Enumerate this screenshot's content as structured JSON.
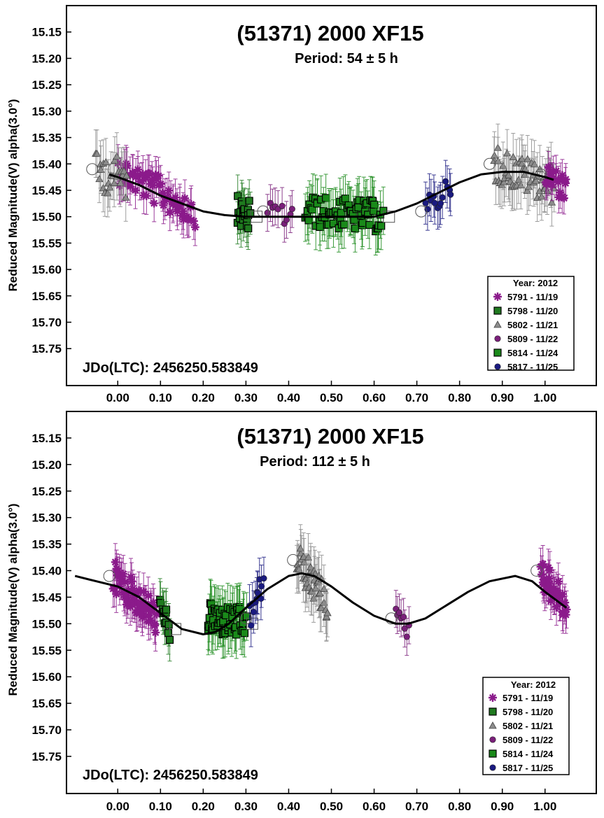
{
  "legend_colors": {
    "5791": "#8b1a8b",
    "5798": "#1f7a1f",
    "5802": "#8c8c8c",
    "5809": "#7a1f7a",
    "5814": "#1a8a1a",
    "5817": "#1a1a80"
  },
  "chart_data": [
    {
      "type": "scatter",
      "title": "(51371) 2000 XF15",
      "subtitle": "Period: 54 ± 5 h",
      "ylabel": "Reduced Magnitude(V) alpha(3.0°)",
      "xlabel": "",
      "jd_label": "JDo(LTC): 2456250.583849",
      "x_range": [
        -0.12,
        1.12
      ],
      "y_range": [
        15.1,
        15.82
      ],
      "y_inverted": true,
      "y_ticks": [
        "15.15",
        "15.20",
        "15.25",
        "15.30",
        "15.35",
        "15.40",
        "15.45",
        "15.50",
        "15.55",
        "15.60",
        "15.65",
        "15.70",
        "15.75"
      ],
      "x_ticks": [
        "0.00",
        "0.10",
        "0.20",
        "0.30",
        "0.40",
        "0.50",
        "0.60",
        "0.70",
        "0.80",
        "0.90",
        "1.00"
      ],
      "legend": {
        "title": "Year: 2012",
        "entries": [
          {
            "label": "5791 - 11/19",
            "symbol": "asterisk",
            "color": "#8b1a8b"
          },
          {
            "label": "5798 - 11/20",
            "symbol": "square",
            "color": "#1f7a1f"
          },
          {
            "label": "5802 - 11/21",
            "symbol": "triangle",
            "color": "#8c8c8c"
          },
          {
            "label": "5809 - 11/22",
            "symbol": "circle",
            "color": "#7a1f7a"
          },
          {
            "label": "5814 - 11/24",
            "symbol": "square",
            "color": "#1a8a1a"
          },
          {
            "label": "5817 - 11/25",
            "symbol": "circle",
            "color": "#1a1a80"
          }
        ]
      },
      "fit_curve": {
        "x": [
          -0.02,
          0.0,
          0.05,
          0.1,
          0.15,
          0.2,
          0.25,
          0.3,
          0.35,
          0.4,
          0.45,
          0.5,
          0.55,
          0.6,
          0.65,
          0.7,
          0.75,
          0.8,
          0.85,
          0.9,
          0.95,
          1.0,
          1.02
        ],
        "y": [
          15.42,
          15.425,
          15.44,
          15.46,
          15.475,
          15.49,
          15.497,
          15.5,
          15.5,
          15.5,
          15.5,
          15.5,
          15.5,
          15.5,
          15.49,
          15.475,
          15.455,
          15.435,
          15.42,
          15.415,
          15.415,
          15.425,
          15.43
        ]
      },
      "series": [
        {
          "name": "5791 - 11/19",
          "symbol": "asterisk",
          "color": "#8b1a8b",
          "x_range": [
            0.0,
            0.18
          ],
          "y_start": 15.41,
          "y_end": 15.49,
          "scatter": 0.03,
          "count": 60,
          "err": 0.035
        },
        {
          "name": "5798 - 11/20",
          "symbol": "square",
          "color": "#1f7a1f",
          "x_range": [
            0.28,
            0.31
          ],
          "y_start": 15.49,
          "y_end": 15.5,
          "scatter": 0.03,
          "count": 20,
          "err": 0.04
        },
        {
          "name": "5802 - 11/21",
          "symbol": "triangle",
          "color": "#8c8c8c",
          "x_range": [
            -0.05,
            0.02
          ],
          "y_start": 15.41,
          "y_end": 15.43,
          "scatter": 0.04,
          "count": 25,
          "err": 0.045
        },
        {
          "name": "5802 - 11/21",
          "symbol": "triangle",
          "color": "#8c8c8c",
          "x_range": [
            0.88,
            1.02
          ],
          "y_start": 15.4,
          "y_end": 15.44,
          "scatter": 0.035,
          "count": 55,
          "err": 0.045
        },
        {
          "name": "5791 - 11/19",
          "symbol": "asterisk",
          "color": "#8b1a8b",
          "x_range": [
            1.0,
            1.05
          ],
          "y_start": 15.42,
          "y_end": 15.45,
          "scatter": 0.025,
          "count": 20,
          "err": 0.03
        },
        {
          "name": "5809 - 11/22",
          "symbol": "circle",
          "color": "#7a1f7a",
          "x_range": [
            0.35,
            0.41
          ],
          "y_start": 15.49,
          "y_end": 15.5,
          "scatter": 0.02,
          "count": 10,
          "err": 0.035
        },
        {
          "name": "5814 - 11/24",
          "symbol": "square",
          "color": "#1a8a1a",
          "x_range": [
            0.44,
            0.62
          ],
          "y_start": 15.49,
          "y_end": 15.5,
          "scatter": 0.03,
          "count": 70,
          "err": 0.045
        },
        {
          "name": "5817 - 11/25",
          "symbol": "circle",
          "color": "#1a1a80",
          "x_range": [
            0.72,
            0.78
          ],
          "y_start": 15.49,
          "y_end": 15.44,
          "scatter": 0.025,
          "count": 14,
          "err": 0.04
        }
      ]
    },
    {
      "type": "scatter",
      "title": "(51371) 2000 XF15",
      "subtitle": "Period: 112 ± 5 h",
      "ylabel": "Reduced Magnitude(V) alpha(3.0°)",
      "xlabel": "",
      "jd_label": "JDo(LTC): 2456250.583849",
      "x_range": [
        -0.12,
        1.12
      ],
      "y_range": [
        15.1,
        15.82
      ],
      "y_inverted": true,
      "y_ticks": [
        "15.15",
        "15.20",
        "15.25",
        "15.30",
        "15.35",
        "15.40",
        "15.45",
        "15.50",
        "15.55",
        "15.60",
        "15.65",
        "15.70",
        "15.75"
      ],
      "x_ticks": [
        "0.00",
        "0.10",
        "0.20",
        "0.30",
        "0.40",
        "0.50",
        "0.60",
        "0.70",
        "0.80",
        "0.90",
        "1.00"
      ],
      "legend": {
        "title": "Year: 2012",
        "entries": [
          {
            "label": "5791 - 11/19",
            "symbol": "asterisk",
            "color": "#8b1a8b"
          },
          {
            "label": "5798 - 11/20",
            "symbol": "square",
            "color": "#1f7a1f"
          },
          {
            "label": "5802 - 11/21",
            "symbol": "triangle",
            "color": "#8c8c8c"
          },
          {
            "label": "5809 - 11/22",
            "symbol": "circle",
            "color": "#7a1f7a"
          },
          {
            "label": "5814 - 11/24",
            "symbol": "square",
            "color": "#1a8a1a"
          },
          {
            "label": "5817 - 11/25",
            "symbol": "circle",
            "color": "#1a1a80"
          }
        ]
      },
      "fit_curve": {
        "x": [
          -0.1,
          -0.05,
          0.0,
          0.05,
          0.1,
          0.15,
          0.2,
          0.23,
          0.26,
          0.3,
          0.35,
          0.4,
          0.43,
          0.46,
          0.5,
          0.55,
          0.6,
          0.65,
          0.68,
          0.72,
          0.77,
          0.82,
          0.87,
          0.93,
          0.97,
          1.0,
          1.05
        ],
        "y": [
          15.41,
          15.42,
          15.43,
          15.45,
          15.48,
          15.51,
          15.52,
          15.515,
          15.5,
          15.47,
          15.435,
          15.41,
          15.405,
          15.41,
          15.43,
          15.46,
          15.485,
          15.5,
          15.5,
          15.49,
          15.465,
          15.44,
          15.42,
          15.41,
          15.42,
          15.44,
          15.47
        ]
      },
      "series": [
        {
          "name": "5791 - 11/19",
          "symbol": "asterisk",
          "color": "#8b1a8b",
          "x_range": [
            -0.01,
            0.09
          ],
          "y_start": 15.41,
          "y_end": 15.49,
          "scatter": 0.03,
          "count": 60,
          "err": 0.035
        },
        {
          "name": "5798 - 11/20",
          "symbol": "square",
          "color": "#1f7a1f",
          "x_range": [
            0.1,
            0.12
          ],
          "y_start": 15.48,
          "y_end": 15.51,
          "scatter": 0.03,
          "count": 12,
          "err": 0.04
        },
        {
          "name": "5814 - 11/24",
          "symbol": "square",
          "color": "#1a8a1a",
          "x_range": [
            0.21,
            0.3
          ],
          "y_start": 15.49,
          "y_end": 15.5,
          "scatter": 0.03,
          "count": 55,
          "err": 0.045
        },
        {
          "name": "5817 - 11/25",
          "symbol": "circle",
          "color": "#1a1a80",
          "x_range": [
            0.31,
            0.34
          ],
          "y_start": 15.49,
          "y_end": 15.42,
          "scatter": 0.025,
          "count": 12,
          "err": 0.04
        },
        {
          "name": "5802 - 11/21",
          "symbol": "triangle",
          "color": "#8c8c8c",
          "x_range": [
            0.42,
            0.49
          ],
          "y_start": 15.38,
          "y_end": 15.46,
          "scatter": 0.035,
          "count": 40,
          "err": 0.045
        },
        {
          "name": "5809 - 11/22",
          "symbol": "circle",
          "color": "#7a1f7a",
          "x_range": [
            0.65,
            0.68
          ],
          "y_start": 15.49,
          "y_end": 15.51,
          "scatter": 0.02,
          "count": 8,
          "err": 0.035
        },
        {
          "name": "5791 - 11/19",
          "symbol": "asterisk",
          "color": "#8b1a8b",
          "x_range": [
            0.99,
            1.05
          ],
          "y_start": 15.4,
          "y_end": 15.47,
          "scatter": 0.03,
          "count": 35,
          "err": 0.035
        }
      ]
    }
  ]
}
